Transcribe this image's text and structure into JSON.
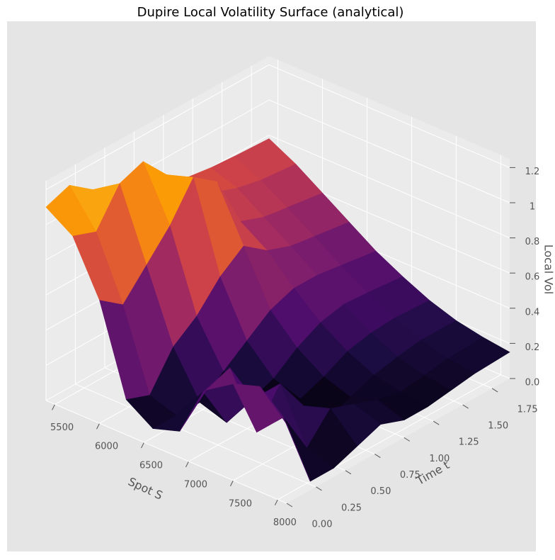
{
  "chart_data": {
    "type": "surface",
    "title": "Dupire Local Volatility Surface (analytical)",
    "xlabel": "Spot S",
    "ylabel": "Time t",
    "zlabel": "Local Vol",
    "colormap": "inferno",
    "x": [
      5400,
      5700,
      6000,
      6300,
      6600,
      6900,
      7200,
      7500,
      7800,
      8100
    ],
    "y": [
      0,
      0.2,
      0.4,
      0.6,
      0.8,
      1.0,
      1.2,
      1.4,
      1.6,
      1.9
    ],
    "z": [
      [
        1.1,
        1.0,
        0.7,
        0.2,
        0.1,
        0.15,
        0.45,
        0.55,
        0.6,
        0.45
      ],
      [
        1.15,
        0.95,
        0.6,
        0.15,
        0.1,
        0.3,
        0.5,
        0.2,
        0.35,
        0.05
      ],
      [
        1.05,
        1.15,
        0.75,
        0.35,
        0.1,
        0.05,
        0.25,
        0.4,
        0.1,
        0.05
      ],
      [
        0.95,
        1.2,
        0.9,
        0.45,
        0.2,
        0.1,
        0.05,
        0.2,
        0.25,
        0.1
      ],
      [
        0.9,
        1.05,
        1.1,
        0.6,
        0.3,
        0.15,
        0.1,
        0.05,
        0.2,
        0.15
      ],
      [
        0.85,
        0.95,
        1.0,
        0.7,
        0.4,
        0.25,
        0.15,
        0.1,
        0.15,
        0.1
      ],
      [
        0.82,
        0.8,
        0.7,
        0.6,
        0.45,
        0.32,
        0.22,
        0.15,
        0.12,
        0.1
      ],
      [
        0.8,
        0.75,
        0.65,
        0.55,
        0.45,
        0.35,
        0.25,
        0.18,
        0.14,
        0.12
      ],
      [
        0.79,
        0.72,
        0.63,
        0.53,
        0.43,
        0.34,
        0.26,
        0.2,
        0.16,
        0.14
      ],
      [
        0.78,
        0.7,
        0.6,
        0.5,
        0.4,
        0.32,
        0.25,
        0.2,
        0.17,
        0.15
      ]
    ],
    "xlim": [
      5400,
      8100
    ],
    "ylim": [
      0,
      1.9
    ],
    "zlim": [
      0,
      1.25
    ],
    "xticks": [
      5500,
      6000,
      6500,
      7000,
      7500,
      8000
    ],
    "yticks": [
      {
        "value": 0,
        "label": "0.00"
      },
      0.25,
      {
        "value": 0.5,
        "label": "0.50"
      },
      0.75,
      {
        "value": 1,
        "label": "1.00"
      },
      1.25,
      {
        "value": 1.5,
        "label": "1.50"
      },
      1.75
    ],
    "zticks": [
      {
        "value": 0,
        "label": "0.0"
      },
      0.2,
      0.4,
      0.6,
      0.8,
      1,
      1.2
    ],
    "grid": true
  }
}
